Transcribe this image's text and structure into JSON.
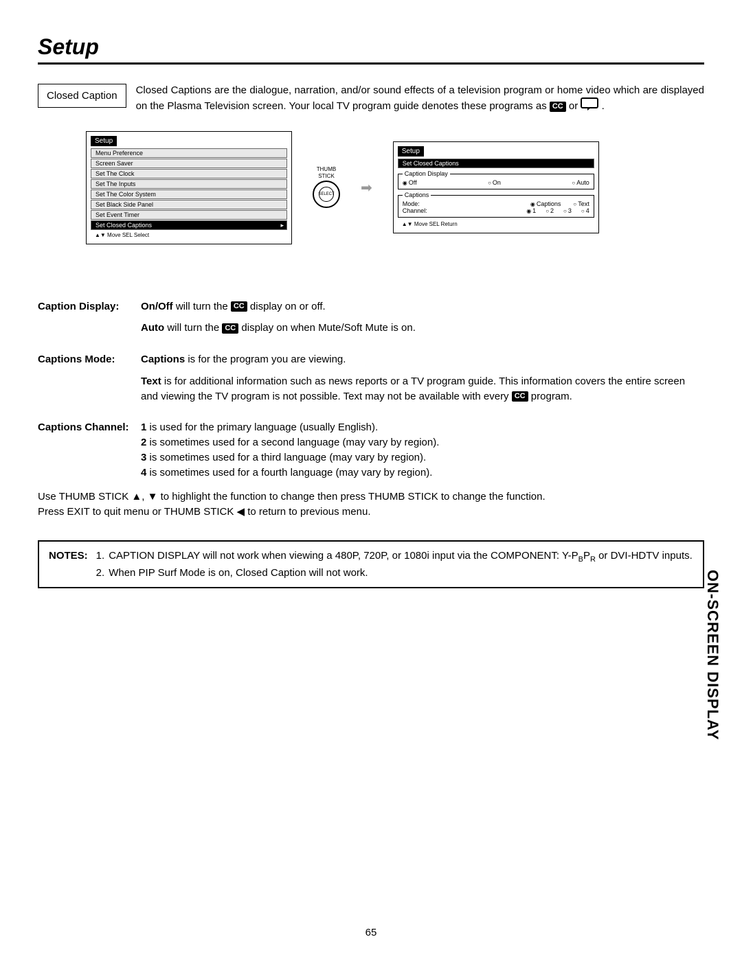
{
  "page": {
    "title": "Setup",
    "sideTab": "ON-SCREEN DISPLAY",
    "pageNumber": "65"
  },
  "intro": {
    "boxLabel": "Closed Caption",
    "text_before_icons": "Closed Captions are the dialogue, narration, and/or sound effects of a television program or home video which are displayed on the Plasma Television screen.  Your local TV program guide denotes these programs as",
    "or": "or",
    "period": "."
  },
  "ccBadge": "CC",
  "leftMenu": {
    "title": "Setup",
    "items": [
      "Menu Preference",
      "Screen Saver",
      "Set The Clock",
      "Set The Inputs",
      "Set The Color System",
      "Set Black Side Panel",
      "Set Event Timer",
      "Set Closed Captions"
    ],
    "selectedIndex": 7,
    "footer": "▲▼  Move   SEL  Select"
  },
  "thumbstick": {
    "label1": "THUMB",
    "label2": "STICK",
    "inner": "SELECT"
  },
  "rightMenu": {
    "title": "Setup",
    "selectedItem": "Set Closed Captions",
    "captionDisplay": {
      "legend": "Caption Display",
      "options": [
        "Off",
        "On",
        "Auto"
      ],
      "selected": "Off"
    },
    "captions": {
      "legend": "Captions",
      "modeLabel": "Mode:",
      "modeOptions": [
        "Captions",
        "Text"
      ],
      "modeSelected": "Captions",
      "channelLabel": "Channel:",
      "channelOptions": [
        "1",
        "2",
        "3",
        "4"
      ],
      "channelSelected": "1"
    },
    "footer": "▲▼  Move   SEL  Return"
  },
  "definitions": {
    "captionDisplay": {
      "label": "Caption Display:",
      "line1_before": "On/Off",
      "line1_mid": " will turn the ",
      "line1_after": " display on or off.",
      "line2_before": "Auto",
      "line2_mid": " will turn the ",
      "line2_after": " display on when Mute/Soft Mute is on."
    },
    "captionsMode": {
      "label": "Captions Mode:",
      "line1_b": "Captions",
      "line1": " is for the program you are viewing.",
      "line2_b": "Text",
      "line2_before": " is for additional information such as news reports or a TV program guide.  This information covers the entire screen and viewing the TV program is not possible.  Text may not be available with every ",
      "line2_after": " program."
    },
    "captionsChannel": {
      "label": "Captions Channel:",
      "l1b": "1",
      "l1": " is used for the primary language (usually English).",
      "l2b": "2",
      "l2": " is sometimes used for a second language (may vary by region).",
      "l3b": "3",
      "l3": " is sometimes used for a third language (may vary by region).",
      "l4b": "4",
      "l4": " is sometimes used for a fourth language (may vary by region)."
    }
  },
  "instructions": {
    "line1": "Use THUMB STICK ▲, ▼ to highlight the function to change then press THUMB STICK to change the function.",
    "line2": "Press EXIT to quit menu or THUMB STICK ◀ to return to previous menu."
  },
  "notes": {
    "label": "NOTES:",
    "items": [
      {
        "num": "1.",
        "text_before": "CAPTION DISPLAY will not work when viewing a 480P, 720P, or 1080i input via the COMPONENT: Y-P",
        "sub1": "B",
        "mid": "P",
        "sub2": "R",
        "text_after": " or DVI-HDTV inputs."
      },
      {
        "num": "2.",
        "text": "When PIP Surf Mode is on, Closed Caption will not work."
      }
    ]
  }
}
